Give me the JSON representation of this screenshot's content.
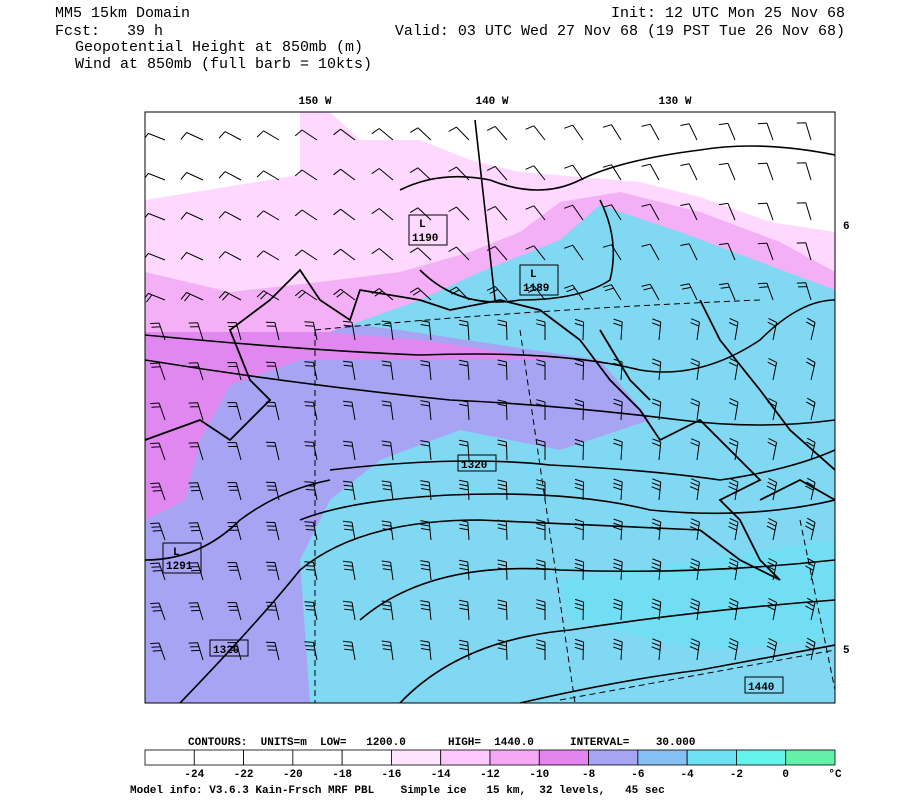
{
  "header": {
    "title": "MM5 15km Domain",
    "forecast": "Fcst:   39 h",
    "field1": "Geopotential Height at 850mb (m)",
    "field2": "Wind at 850mb (full barb = 10kts)",
    "init": "Init: 12 UTC Mon 25 Nov 68",
    "valid": "Valid: 03 UTC Wed 27 Nov 68 (19 PST Tue 26 Nov 68)"
  },
  "map": {
    "lon_labels": [
      "150 W",
      "140 W",
      "130 W"
    ],
    "lat_labels": [
      "6",
      "5"
    ],
    "contour_labels": [
      {
        "low": "L",
        "text": "1190"
      },
      {
        "low": "L",
        "text": "1189"
      },
      {
        "text": "1320"
      },
      {
        "low": "L",
        "text": "1291"
      },
      {
        "text": "1320"
      },
      {
        "text": "1440"
      }
    ]
  },
  "contour_info": {
    "units": "CONTOURS:  UNITS=m  LOW=   1200.0",
    "high": "HIGH=  1440.0",
    "interval": "INTERVAL=    30.000"
  },
  "colorbar": {
    "labels": [
      "-24",
      "-22",
      "-20",
      "-18",
      "-16",
      "-14",
      "-12",
      "-10",
      "-8",
      "-6",
      "-4",
      "-2",
      "0"
    ],
    "unit": "°C",
    "colors": [
      "#ffffff",
      "#ffffff",
      "#ffffff",
      "#ffffff",
      "#ffffff",
      "#ffe4ff",
      "#ffc8ff",
      "#f4a8f6",
      "#e484f0",
      "#a8a4f4",
      "#84c0f4",
      "#6ee0f4",
      "#64f4ec",
      "#64f0a8"
    ]
  },
  "footer": "Model info: V3.6.3 Kain-Frsch MRF PBL    Simple ice   15 km,  32 levels,   45 sec"
}
